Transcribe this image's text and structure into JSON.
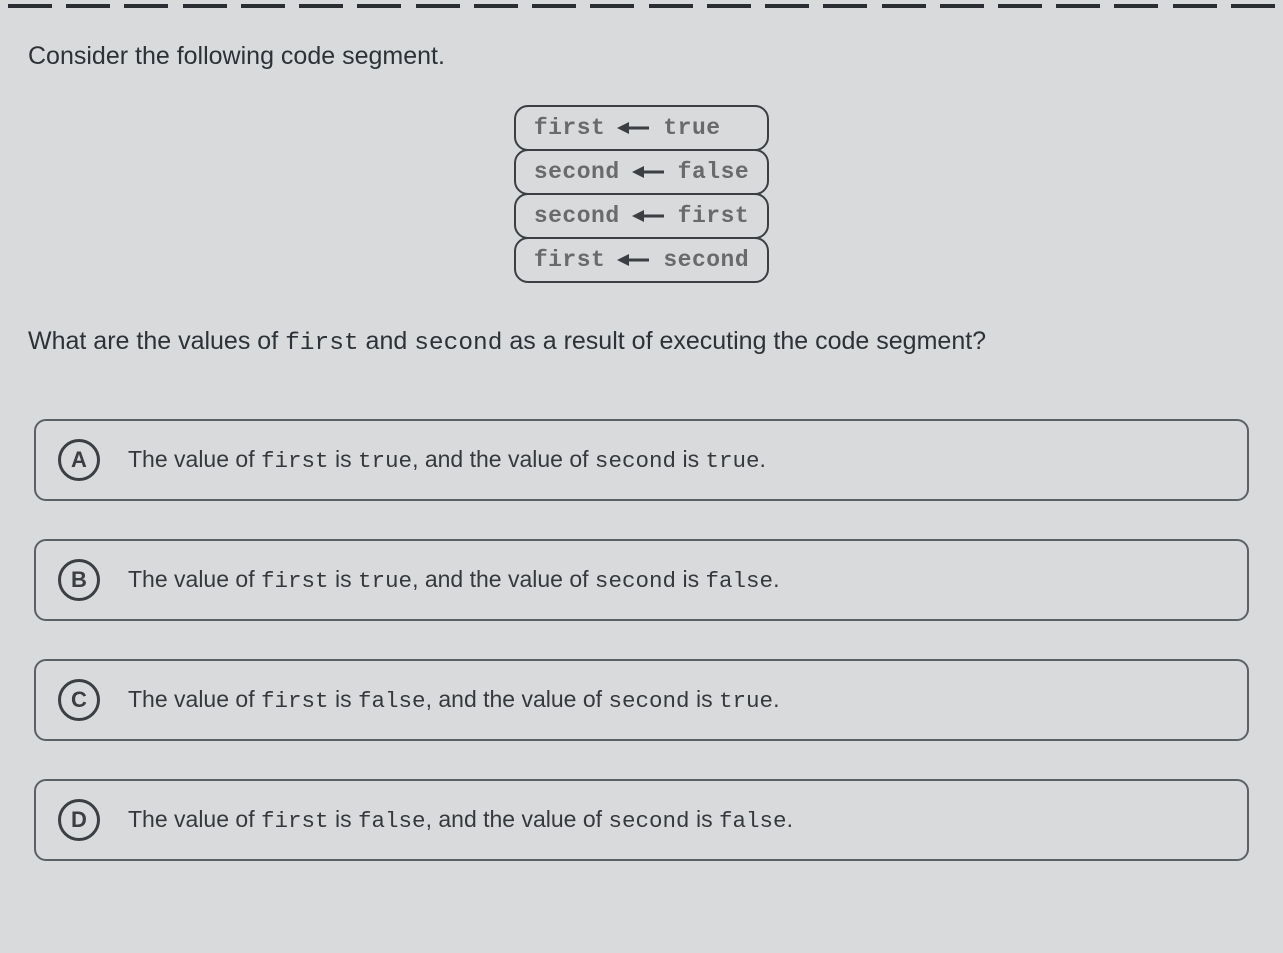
{
  "question": {
    "intro": "Consider the following code segment.",
    "prompt_pre": "What are the values of ",
    "prompt_var1": "first",
    "prompt_mid1": " and ",
    "prompt_var2": "second",
    "prompt_post": " as a result of executing the code segment?"
  },
  "code": {
    "lines": [
      {
        "lhs": "first",
        "rhs": "true"
      },
      {
        "lhs": "second",
        "rhs": "false"
      },
      {
        "lhs": "second",
        "rhs": "first"
      },
      {
        "lhs": "first",
        "rhs": "second"
      }
    ]
  },
  "options": [
    {
      "letter": "A",
      "t1": "The value of ",
      "v1": "first",
      "t2": " is ",
      "v2": "true",
      "t3": ",  and the value of ",
      "v3": "second",
      "t4": " is ",
      "v4": "true",
      "t5": "."
    },
    {
      "letter": "B",
      "t1": "The value of ",
      "v1": "first",
      "t2": " is ",
      "v2": "true",
      "t3": ",  and the value of ",
      "v3": "second",
      "t4": " is ",
      "v4": "false",
      "t5": "."
    },
    {
      "letter": "C",
      "t1": "The value of ",
      "v1": "first",
      "t2": " is ",
      "v2": "false",
      "t3": ",  and the value of ",
      "v3": "second",
      "t4": " is ",
      "v4": "true",
      "t5": "."
    },
    {
      "letter": "D",
      "t1": "The value of ",
      "v1": "first",
      "t2": " is ",
      "v2": "false",
      "t3": ",  and the value of ",
      "v3": "second",
      "t4": " is ",
      "v4": "false",
      "t5": "."
    }
  ],
  "style": {
    "dash_count": 22
  }
}
